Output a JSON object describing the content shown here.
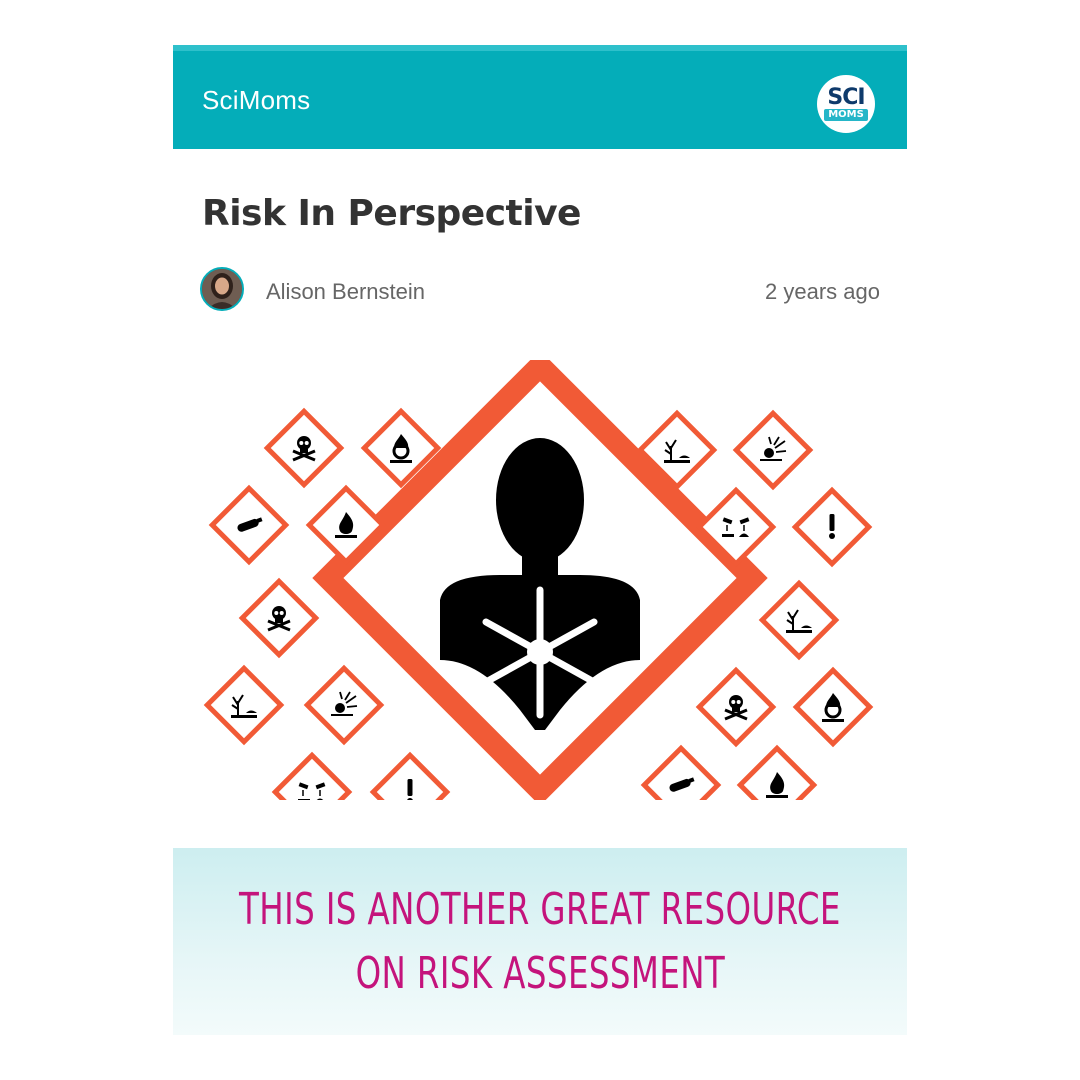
{
  "app": {
    "name": "SciMoms",
    "logo_line1": "SCI",
    "logo_line2": "MOMS",
    "accent_color": "#04adb9"
  },
  "article": {
    "title": "Risk In Perspective",
    "author": "Alison Bernstein",
    "posted": "2 years ago"
  },
  "image": {
    "content": "GHS hazard pictograms",
    "center_pictogram": "health-hazard",
    "border_color": "#f15a36"
  },
  "banner": {
    "line1": "THIS IS ANOTHER GREAT RESOURCE",
    "line2": "ON RISK ASSESSMENT",
    "text_color": "#c4147c"
  }
}
